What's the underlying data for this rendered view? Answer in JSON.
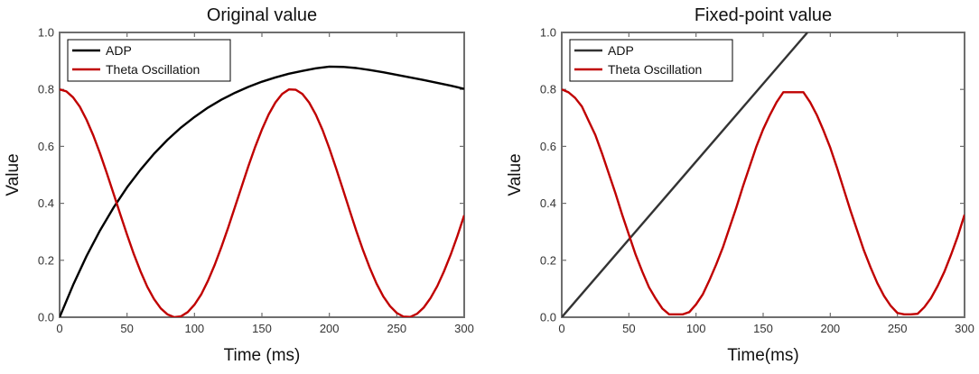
{
  "chart_data": [
    {
      "type": "line",
      "title": "Original value",
      "xlabel": "Time (ms)",
      "ylabel": "Value",
      "xlim": [
        0,
        300
      ],
      "ylim": [
        0,
        1
      ],
      "xticks": [
        0,
        50,
        100,
        150,
        200,
        250,
        300
      ],
      "yticks": [
        "0.0",
        "0.2",
        "0.4",
        "0.6",
        "0.8",
        "1.0"
      ],
      "legend_position": "top-left",
      "series": [
        {
          "name": "ADP",
          "color": "#000000",
          "x": [
            0,
            10,
            20,
            30,
            40,
            50,
            60,
            70,
            80,
            90,
            100,
            110,
            120,
            130,
            140,
            150,
            160,
            170,
            180,
            190,
            200,
            210,
            220,
            230,
            240,
            250,
            260,
            270,
            280,
            290,
            300
          ],
          "values": [
            0.0,
            0.113,
            0.215,
            0.305,
            0.385,
            0.456,
            0.518,
            0.574,
            0.623,
            0.666,
            0.703,
            0.736,
            0.764,
            0.788,
            0.809,
            0.827,
            0.842,
            0.855,
            0.865,
            0.874,
            0.88,
            0.879,
            0.875,
            0.868,
            0.86,
            0.851,
            0.842,
            0.833,
            0.823,
            0.813,
            0.802
          ]
        },
        {
          "name": "Theta Oscillation",
          "color": "#c00000",
          "x": [
            0,
            5,
            10,
            15,
            20,
            25,
            30,
            35,
            40,
            45,
            50,
            55,
            60,
            65,
            70,
            75,
            80,
            85,
            90,
            95,
            100,
            105,
            110,
            115,
            120,
            125,
            130,
            135,
            140,
            145,
            150,
            155,
            160,
            165,
            170,
            175,
            180,
            185,
            190,
            195,
            200,
            205,
            210,
            215,
            220,
            225,
            230,
            235,
            240,
            245,
            250,
            255,
            260,
            265,
            270,
            275,
            280,
            285,
            290,
            295,
            300
          ],
          "values": [
            0.8,
            0.793,
            0.772,
            0.739,
            0.693,
            0.638,
            0.575,
            0.506,
            0.434,
            0.361,
            0.29,
            0.222,
            0.161,
            0.107,
            0.064,
            0.031,
            0.01,
            0.0,
            0.003,
            0.018,
            0.044,
            0.08,
            0.128,
            0.184,
            0.247,
            0.315,
            0.387,
            0.459,
            0.531,
            0.598,
            0.659,
            0.712,
            0.754,
            0.784,
            0.8,
            0.799,
            0.784,
            0.754,
            0.711,
            0.657,
            0.593,
            0.523,
            0.45,
            0.376,
            0.303,
            0.235,
            0.173,
            0.118,
            0.073,
            0.039,
            0.015,
            0.002,
            0.001,
            0.012,
            0.034,
            0.067,
            0.109,
            0.161,
            0.22,
            0.286,
            0.358
          ]
        }
      ]
    },
    {
      "type": "line",
      "title": "Fixed-point value",
      "xlabel": "Time(ms)",
      "ylabel": "Value",
      "xlim": [
        0,
        300
      ],
      "ylim": [
        0,
        1
      ],
      "xticks": [
        0,
        50,
        100,
        150,
        200,
        250,
        300
      ],
      "yticks": [
        "0.0",
        "0.2",
        "0.4",
        "0.6",
        "0.8",
        "1.0"
      ],
      "legend_position": "top-left",
      "series": [
        {
          "name": "ADP",
          "color": "#333333",
          "x": [
            0,
            183
          ],
          "values": [
            0.0,
            1.0
          ]
        },
        {
          "name": "Theta Oscillation",
          "color": "#c00000",
          "x": [
            0,
            5,
            10,
            15,
            20,
            25,
            30,
            35,
            40,
            45,
            50,
            55,
            60,
            65,
            70,
            75,
            80,
            85,
            90,
            95,
            100,
            105,
            110,
            115,
            120,
            125,
            130,
            135,
            140,
            145,
            150,
            155,
            160,
            165,
            170,
            175,
            180,
            185,
            190,
            195,
            200,
            205,
            210,
            215,
            220,
            225,
            230,
            235,
            240,
            245,
            250,
            255,
            260,
            265,
            270,
            275,
            280,
            285,
            290,
            295,
            300
          ],
          "values": [
            0.8,
            0.79,
            0.77,
            0.74,
            0.69,
            0.64,
            0.575,
            0.505,
            0.435,
            0.36,
            0.29,
            0.22,
            0.16,
            0.105,
            0.065,
            0.03,
            0.01,
            0.01,
            0.01,
            0.018,
            0.045,
            0.08,
            0.13,
            0.185,
            0.245,
            0.315,
            0.385,
            0.46,
            0.53,
            0.6,
            0.66,
            0.71,
            0.755,
            0.79,
            0.79,
            0.79,
            0.79,
            0.755,
            0.71,
            0.655,
            0.595,
            0.525,
            0.45,
            0.375,
            0.305,
            0.235,
            0.175,
            0.12,
            0.075,
            0.04,
            0.015,
            0.01,
            0.01,
            0.012,
            0.035,
            0.067,
            0.11,
            0.16,
            0.22,
            0.285,
            0.36
          ]
        }
      ]
    }
  ]
}
